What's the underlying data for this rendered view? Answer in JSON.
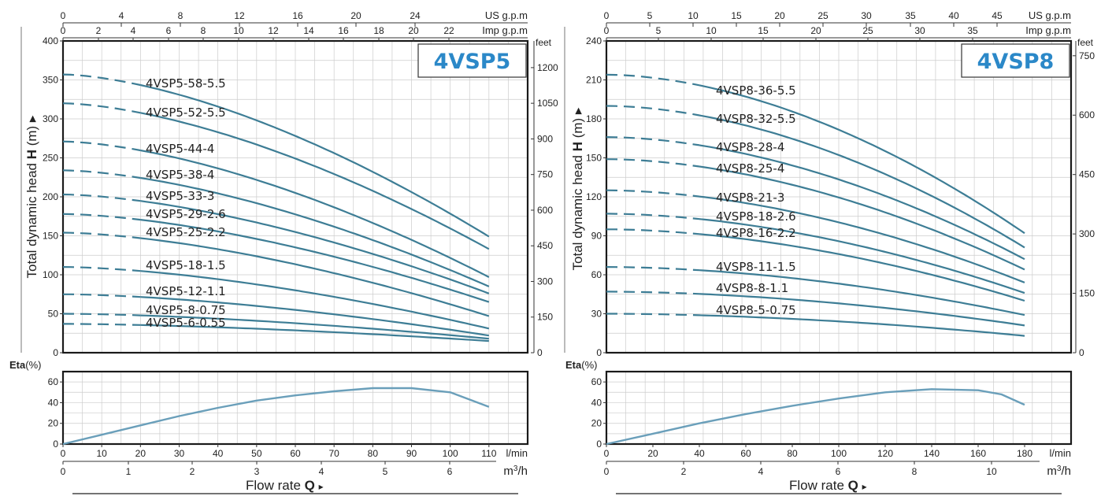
{
  "colors": {
    "curve": "#3d7d95",
    "eta": "#6a9fba",
    "grid": "#cccccc",
    "frame": "#1a1a1a",
    "title": "#2b88c8"
  },
  "common": {
    "us_gpm": "US g.p.m",
    "imp_gpm": "Imp g.p.m",
    "feet": "feet",
    "lmin": "l/min",
    "m3h_base": "m",
    "m3h_sup": "3",
    "m3h_tail": "/h",
    "ylabel_pre": "Total dynamic head ",
    "ylabel_bold": "H",
    "ylabel_post": " (m) ▸",
    "eta_bold": "Eta",
    "eta_pct": "(%)",
    "flow_label": "Flow  rate  ",
    "flow_bold": "Q",
    "flow_arrow": "▸"
  },
  "chart_data": [
    {
      "type": "line",
      "title": "4VSP5",
      "x_unit": "l/min",
      "xlim": [
        0,
        120
      ],
      "ylim": [
        0,
        400
      ],
      "feet_ticks": [
        0,
        150,
        300,
        450,
        600,
        750,
        900,
        1050,
        1200
      ],
      "x_ticks_lmin": [
        0,
        10,
        20,
        30,
        40,
        50,
        60,
        70,
        80,
        90,
        100,
        110
      ],
      "x_ticks_m3h": [
        0,
        1,
        2,
        3,
        4,
        5,
        6
      ],
      "x_ticks_us": [
        0,
        4,
        8,
        12,
        16,
        20,
        24
      ],
      "x_ticks_imp": [
        0,
        2,
        4,
        6,
        8,
        10,
        12,
        14,
        16,
        18,
        20,
        22
      ],
      "y_ticks": [
        0,
        50,
        100,
        150,
        200,
        250,
        300,
        350,
        400
      ],
      "curve_start_x": 0,
      "dash_end_x": 20,
      "curve_end_x": 110,
      "series": [
        {
          "name": "4VSP5-58-5.5",
          "h0": 357,
          "hend": 149,
          "p": 1.6
        },
        {
          "name": "4VSP5-52-5.5",
          "h0": 320,
          "hend": 133,
          "p": 1.6
        },
        {
          "name": "4VSP5-44-4",
          "h0": 271,
          "hend": 97,
          "p": 1.6
        },
        {
          "name": "4VSP5-38-4",
          "h0": 234,
          "hend": 85,
          "p": 1.6
        },
        {
          "name": "4VSP5-33-3",
          "h0": 203,
          "hend": 76,
          "p": 1.6
        },
        {
          "name": "4VSP5-29-2.6",
          "h0": 178,
          "hend": 65,
          "p": 1.6
        },
        {
          "name": "4VSP5-25-2.2",
          "h0": 154,
          "hend": 47,
          "p": 1.6
        },
        {
          "name": "4VSP5-18-1.5",
          "h0": 110,
          "hend": 31,
          "p": 1.6
        },
        {
          "name": "4VSP5-12-1.1",
          "h0": 75,
          "hend": 22,
          "p": 1.6
        },
        {
          "name": "4VSP5-8-0.75",
          "h0": 50,
          "hend": 18,
          "p": 1.6
        },
        {
          "name": "4VSP5-6-0.55",
          "h0": 37,
          "hend": 15,
          "p": 1.6
        }
      ],
      "eta": {
        "ylim": [
          0,
          70
        ],
        "y_ticks": [
          0,
          20,
          40,
          60
        ],
        "points": [
          [
            0,
            0
          ],
          [
            10,
            9
          ],
          [
            20,
            18
          ],
          [
            30,
            27
          ],
          [
            40,
            35
          ],
          [
            50,
            42
          ],
          [
            60,
            47
          ],
          [
            70,
            51
          ],
          [
            80,
            54
          ],
          [
            90,
            54
          ],
          [
            100,
            50
          ],
          [
            110,
            36
          ]
        ]
      }
    },
    {
      "type": "line",
      "title": "4VSP8",
      "x_unit": "l/min",
      "xlim": [
        0,
        200
      ],
      "ylim": [
        0,
        240
      ],
      "feet_ticks": [
        0,
        150,
        300,
        450,
        600,
        750
      ],
      "x_ticks_lmin": [
        0,
        20,
        40,
        60,
        80,
        100,
        120,
        140,
        160,
        180
      ],
      "x_ticks_m3h": [
        0,
        2,
        4,
        6,
        8,
        10
      ],
      "x_ticks_us": [
        0,
        5,
        10,
        15,
        20,
        25,
        30,
        35,
        40,
        45
      ],
      "x_ticks_imp": [
        0,
        5,
        10,
        15,
        20,
        25,
        30,
        35
      ],
      "y_ticks": [
        0,
        30,
        60,
        90,
        120,
        150,
        180,
        210,
        240
      ],
      "curve_start_x": 0,
      "dash_end_x": 40,
      "curve_end_x": 180,
      "series": [
        {
          "name": "4VSP8-36-5.5",
          "h0": 214,
          "hend": 92,
          "p": 1.8
        },
        {
          "name": "4VSP8-32-5.5",
          "h0": 190,
          "hend": 81,
          "p": 1.8
        },
        {
          "name": "4VSP8-28-4",
          "h0": 166,
          "hend": 72,
          "p": 1.8
        },
        {
          "name": "4VSP8-25-4",
          "h0": 149,
          "hend": 64,
          "p": 1.8
        },
        {
          "name": "4VSP8-21-3",
          "h0": 125,
          "hend": 54,
          "p": 1.8
        },
        {
          "name": "4VSP8-18-2.6",
          "h0": 107,
          "hend": 46,
          "p": 1.8
        },
        {
          "name": "4VSP8-16-2.2",
          "h0": 95,
          "hend": 40,
          "p": 1.8
        },
        {
          "name": "4VSP8-11-1.5",
          "h0": 66,
          "hend": 29,
          "p": 1.8
        },
        {
          "name": "4VSP8-8-1.1",
          "h0": 47,
          "hend": 21,
          "p": 1.8
        },
        {
          "name": "4VSP8-5-0.75",
          "h0": 30,
          "hend": 13,
          "p": 1.8
        }
      ],
      "eta": {
        "ylim": [
          0,
          70
        ],
        "y_ticks": [
          0,
          20,
          40,
          60
        ],
        "points": [
          [
            0,
            0
          ],
          [
            20,
            10
          ],
          [
            40,
            20
          ],
          [
            60,
            29
          ],
          [
            80,
            37
          ],
          [
            100,
            44
          ],
          [
            120,
            50
          ],
          [
            140,
            53
          ],
          [
            160,
            52
          ],
          [
            170,
            48
          ],
          [
            180,
            38
          ]
        ]
      }
    }
  ]
}
